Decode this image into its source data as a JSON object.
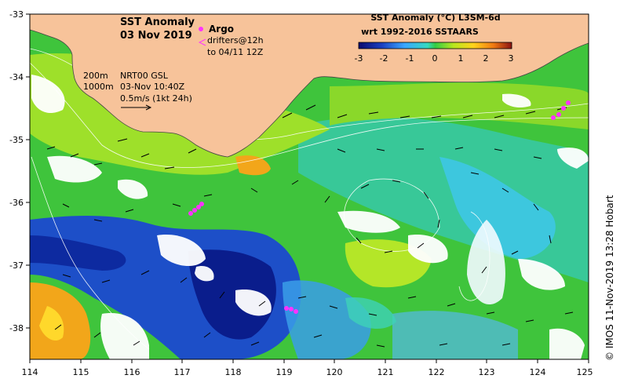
{
  "map": {
    "title_line1": "SST Anomaly",
    "title_line2": "03 Nov 2019",
    "colorbar_title_line1": "SST Anomaly (°C) L3SM-6d",
    "colorbar_title_line2": "wrt 1992-2016 SSTAARS",
    "colorbar_ticks": [
      "-3",
      "-2",
      "-1",
      "0",
      "1",
      "2",
      "3"
    ],
    "colorbar_range": [
      -3,
      3
    ],
    "legend": {
      "argo_label": "Argo",
      "drifters_label": "drifters@12h",
      "drifters_period": "to 04/11 12Z"
    },
    "contours": [
      "200m",
      "1000m"
    ],
    "product_label": "NRT00 GSL",
    "product_time": "03-Nov 10:40Z",
    "current_scale": "0.5m/s (1kt 24h)",
    "credit": "© IMOS 11-Nov-2019 13:28 Hobart",
    "lon_ticks": [
      "114",
      "115",
      "116",
      "117",
      "118",
      "119",
      "120",
      "121",
      "122",
      "123",
      "124",
      "125"
    ],
    "lat_ticks": [
      "-33",
      "-34",
      "-35",
      "-36",
      "-37",
      "-38"
    ],
    "colors": {
      "land": "#f7c39a",
      "coast": "#444444",
      "frame": "#000000",
      "argo": "#ff33ff"
    }
  }
}
